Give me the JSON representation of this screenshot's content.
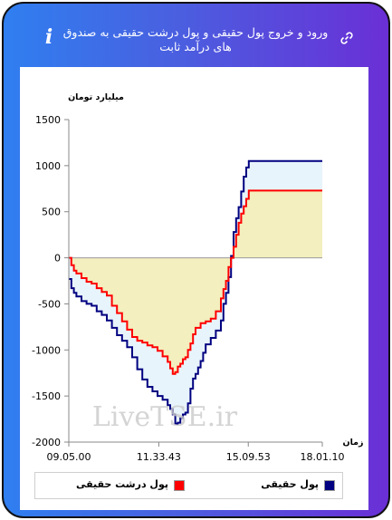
{
  "header": {
    "title": "ورود و خروج پول حقیقی و پول درشت حقیقی به صندوق های درآمد ثابت",
    "info_icon": "info-icon",
    "link_icon": "link-icon",
    "info_glyph": "i",
    "link_glyph": "🔗"
  },
  "watermark": "LiveTSE.ir",
  "chart_data": {
    "type": "line",
    "title": "",
    "ylabel": "میلیارد تومان",
    "xlabel": "زمان",
    "ylim": [
      -2000,
      1500
    ],
    "yticks": [
      1500,
      1000,
      500,
      0,
      -500,
      -1000,
      -1500,
      -2000
    ],
    "ytick_labels": [
      "1500",
      "1000",
      "500",
      "0",
      "-500",
      "-1000",
      "-1500",
      "-2000"
    ],
    "xlim": [
      0,
      100
    ],
    "xticks": [
      0,
      35.5,
      70.8,
      100
    ],
    "xtick_labels": [
      "09.05.00",
      "11.33.43",
      "15.09.53",
      "18.01.10"
    ],
    "grid": false,
    "legend_position": "bottom",
    "series": [
      {
        "name": "پول حقیقی",
        "color": "#000080",
        "fill": "#e8f4fb",
        "x": [
          0,
          1,
          2,
          3,
          5,
          7,
          9,
          11,
          13,
          15,
          17,
          19,
          21,
          23,
          25,
          27,
          29,
          31,
          33,
          35,
          37,
          39,
          40,
          41,
          42,
          43,
          44,
          45,
          46,
          47,
          48,
          49,
          50,
          51,
          52,
          53,
          54,
          56,
          58,
          60,
          61,
          62,
          63,
          64,
          65,
          66,
          67,
          68,
          69,
          70,
          71,
          100
        ],
        "y": [
          -230,
          -330,
          -380,
          -420,
          -470,
          -500,
          -520,
          -580,
          -620,
          -680,
          -760,
          -840,
          -900,
          -970,
          -1080,
          -1210,
          -1320,
          -1400,
          -1450,
          -1500,
          -1540,
          -1600,
          -1640,
          -1700,
          -1800,
          -1790,
          -1740,
          -1700,
          -1680,
          -1580,
          -1420,
          -1310,
          -1260,
          -1190,
          -1120,
          -1030,
          -940,
          -870,
          -790,
          -680,
          -500,
          -380,
          -210,
          20,
          280,
          430,
          550,
          720,
          880,
          980,
          1050,
          1050
        ]
      },
      {
        "name": "پول درشت حقیقی",
        "color": "#ff0000",
        "fill": "#f3efbe",
        "x": [
          0,
          1,
          2,
          3,
          5,
          7,
          9,
          11,
          13,
          15,
          17,
          19,
          21,
          23,
          25,
          27,
          29,
          31,
          33,
          35,
          37,
          39,
          40,
          41,
          42,
          43,
          44,
          45,
          46,
          47,
          48,
          49,
          50,
          52,
          54,
          56,
          58,
          60,
          61,
          62,
          63,
          64,
          65,
          66,
          67,
          68,
          69,
          70,
          71,
          100
        ],
        "y": [
          0,
          -80,
          -140,
          -170,
          -220,
          -260,
          -280,
          -330,
          -370,
          -410,
          -520,
          -600,
          -690,
          -780,
          -860,
          -900,
          -920,
          -950,
          -970,
          -1010,
          -1070,
          -1130,
          -1200,
          -1260,
          -1240,
          -1180,
          -1150,
          -1100,
          -1080,
          -1000,
          -930,
          -830,
          -760,
          -710,
          -690,
          -660,
          -580,
          -440,
          -340,
          -250,
          -100,
          0,
          120,
          250,
          380,
          480,
          560,
          640,
          730,
          730
        ]
      }
    ]
  },
  "legend": {
    "items": [
      {
        "label": "پول حقیقی",
        "color": "#000080"
      },
      {
        "label": "پول درشت حقیقی",
        "color": "#ff0000"
      }
    ]
  }
}
